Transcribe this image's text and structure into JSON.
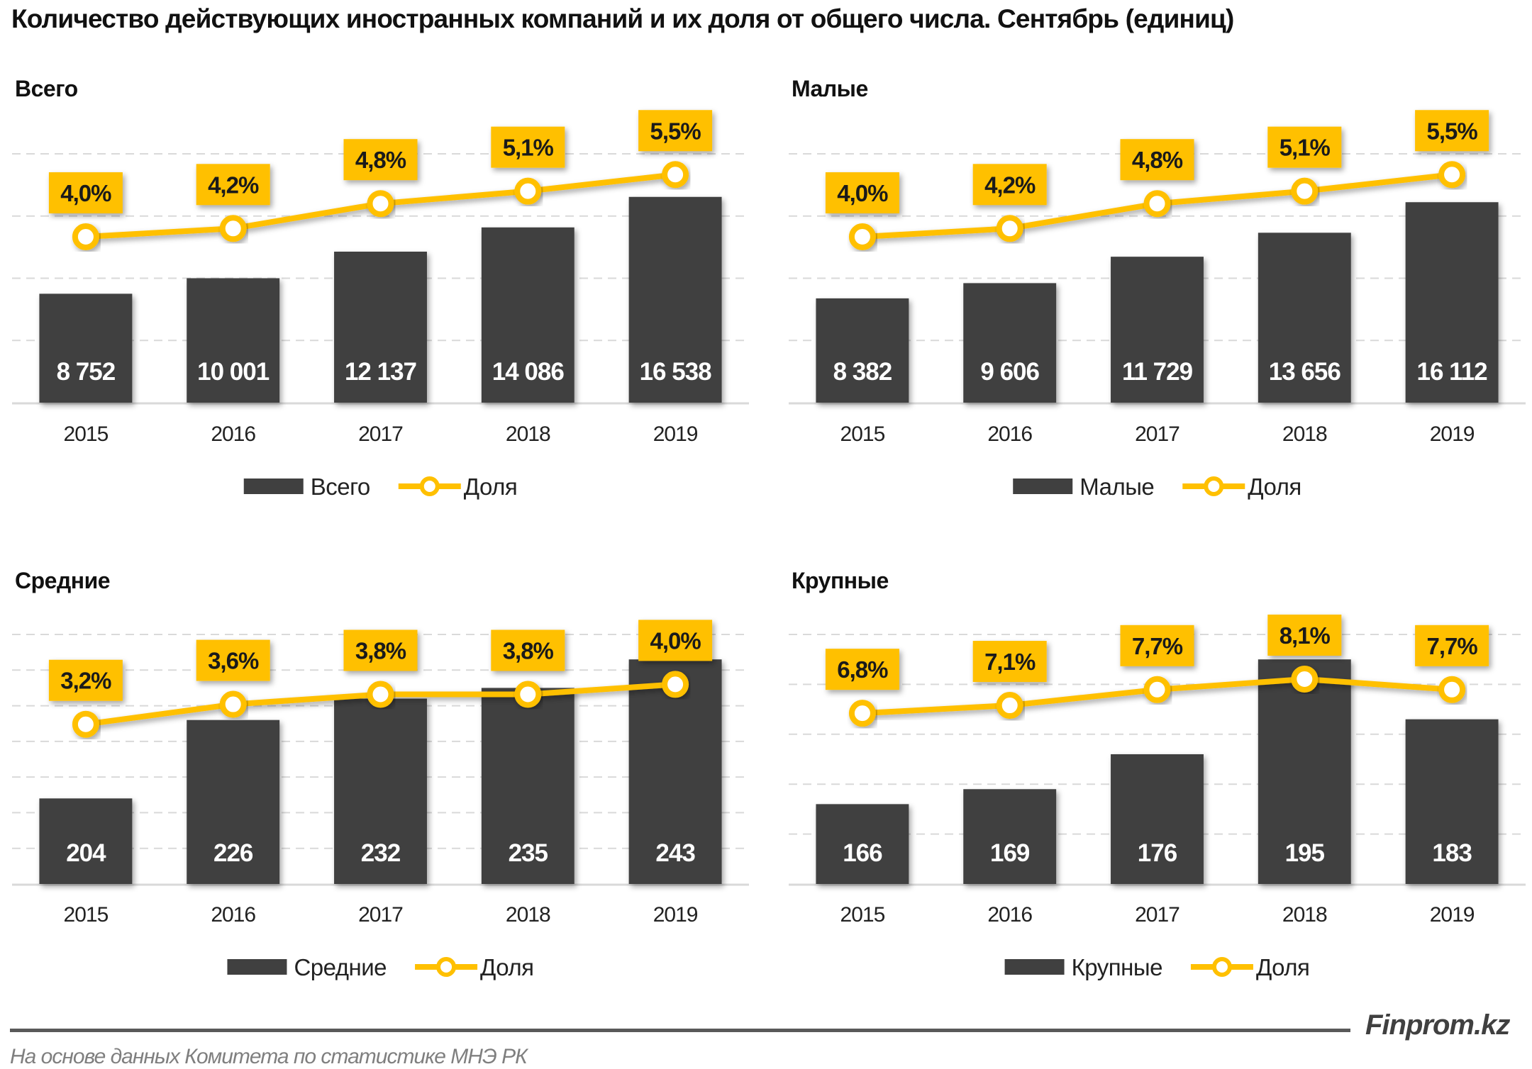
{
  "title": "Количество действующих иностранных компаний и их доля от общего числа. Сентябрь (единиц)",
  "brand": "Finprom.kz",
  "source": "На основе данных  Комитета по статистике МНЭ РК",
  "colors": {
    "bar": "#404040",
    "line": "#FFC000",
    "label_box": "#FFC000",
    "grid": "#D9D9D9"
  },
  "chart_data": [
    {
      "type": "bar+line",
      "title": "Всего",
      "categories": [
        "2015",
        "2016",
        "2017",
        "2018",
        "2019"
      ],
      "ylim": [
        0,
        20000
      ],
      "ystep": 5000,
      "y2lim": [
        0,
        6
      ],
      "grid": true,
      "legend": "bottom",
      "series": [
        {
          "name": "Всего",
          "type": "bar",
          "values": [
            8752,
            10001,
            12137,
            14086,
            16538
          ],
          "labels": [
            "8 752",
            "10 001",
            "12 137",
            "14 086",
            "16 538"
          ]
        },
        {
          "name": "Доля",
          "type": "line",
          "axis": "secondary",
          "values": [
            4.0,
            4.2,
            4.8,
            5.1,
            5.5
          ],
          "labels": [
            "4,0%",
            "4,2%",
            "4,8%",
            "5,1%",
            "5,5%"
          ]
        }
      ]
    },
    {
      "type": "bar+line",
      "title": "Малые",
      "categories": [
        "2015",
        "2016",
        "2017",
        "2018",
        "2019"
      ],
      "ylim": [
        0,
        20000
      ],
      "ystep": 5000,
      "y2lim": [
        0,
        6
      ],
      "grid": true,
      "legend": "bottom",
      "series": [
        {
          "name": "Малые",
          "type": "bar",
          "values": [
            8382,
            9606,
            11729,
            13656,
            16112
          ],
          "labels": [
            "8 382",
            "9 606",
            "11 729",
            "13 656",
            "16 112"
          ]
        },
        {
          "name": "Доля",
          "type": "line",
          "axis": "secondary",
          "values": [
            4.0,
            4.2,
            4.8,
            5.1,
            5.5
          ],
          "labels": [
            "4,0%",
            "4,2%",
            "4,8%",
            "5,1%",
            "5,5%"
          ]
        }
      ]
    },
    {
      "type": "bar+line",
      "title": "Средние",
      "categories": [
        "2015",
        "2016",
        "2017",
        "2018",
        "2019"
      ],
      "ylim": [
        180,
        250
      ],
      "ystep": 10,
      "y2lim": [
        0,
        5
      ],
      "grid": true,
      "legend": "bottom",
      "series": [
        {
          "name": "Средние",
          "type": "bar",
          "values": [
            204,
            226,
            232,
            235,
            243
          ],
          "labels": [
            "204",
            "226",
            "232",
            "235",
            "243"
          ]
        },
        {
          "name": "Доля",
          "type": "line",
          "axis": "secondary",
          "values": [
            3.2,
            3.6,
            3.8,
            3.8,
            4.0
          ],
          "labels": [
            "3,2%",
            "3,6%",
            "3,8%",
            "3,8%",
            "4,0%"
          ]
        }
      ]
    },
    {
      "type": "bar+line",
      "title": "Крупные",
      "categories": [
        "2015",
        "2016",
        "2017",
        "2018",
        "2019"
      ],
      "ylim": [
        150,
        200
      ],
      "ystep": 10,
      "y2lim": [
        0.3,
        9.8
      ],
      "grid": true,
      "legend": "bottom",
      "series": [
        {
          "name": "Крупные",
          "type": "bar",
          "values": [
            166,
            169,
            176,
            195,
            183
          ],
          "labels": [
            "166",
            "169",
            "176",
            "195",
            "183"
          ]
        },
        {
          "name": "Доля",
          "type": "line",
          "axis": "secondary",
          "values": [
            6.8,
            7.1,
            7.7,
            8.1,
            7.7
          ],
          "labels": [
            "6,8%",
            "7,1%",
            "7,7%",
            "8,1%",
            "7,7%"
          ]
        }
      ]
    }
  ]
}
